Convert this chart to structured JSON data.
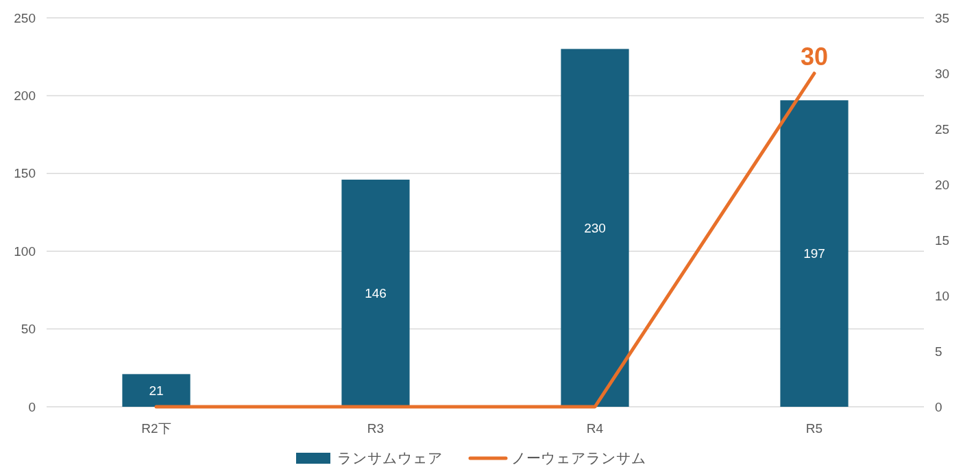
{
  "chart_data": {
    "type": "bar",
    "categories": [
      "R2下",
      "R3",
      "R4",
      "R5"
    ],
    "series": [
      {
        "name": "ランサムウェア",
        "color": "#17607f",
        "values": [
          21,
          146,
          230,
          197
        ],
        "value_labels": [
          "21",
          "146",
          "230",
          "197"
        ]
      },
      {
        "name": "ノーウェアランサム",
        "type": "line",
        "axis": "y2",
        "color": "#e8702a",
        "values": [
          0,
          0,
          0,
          30
        ],
        "value_labels": [
          null,
          null,
          null,
          "30"
        ]
      }
    ],
    "ylim": [
      0,
      250
    ],
    "yticks": [
      0,
      50,
      100,
      150,
      200,
      250
    ],
    "y2lim": [
      0,
      35
    ],
    "y2ticks": [
      0,
      5,
      10,
      15,
      20,
      25,
      30,
      35
    ],
    "grid": "y",
    "legend": "bottom",
    "marker": "none",
    "line_style": "solid"
  }
}
